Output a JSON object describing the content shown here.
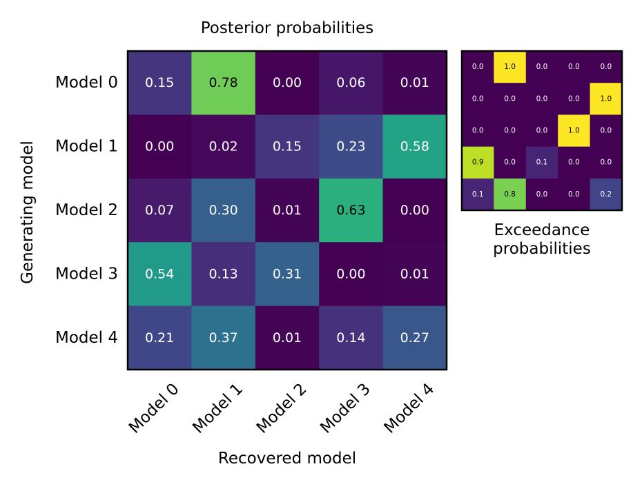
{
  "chart_data": [
    {
      "type": "heatmap",
      "title": "Posterior probabilities",
      "xlabel": "Recovered model",
      "ylabel": "Generating model",
      "x_categories": [
        "Model 0",
        "Model 1",
        "Model 2",
        "Model 3",
        "Model 4"
      ],
      "y_categories": [
        "Model 0",
        "Model 1",
        "Model 2",
        "Model 3",
        "Model 4"
      ],
      "values": [
        [
          0.15,
          0.78,
          0.0,
          0.06,
          0.01
        ],
        [
          0.0,
          0.02,
          0.15,
          0.23,
          0.58
        ],
        [
          0.07,
          0.3,
          0.01,
          0.63,
          0.0
        ],
        [
          0.54,
          0.13,
          0.31,
          0.0,
          0.01
        ],
        [
          0.21,
          0.37,
          0.01,
          0.14,
          0.27
        ]
      ],
      "value_format_decimals": 2,
      "colormap": "viridis",
      "vmin": 0,
      "vmax": 1,
      "light_text_color": "#ffffff",
      "dark_text_color": "#000000"
    },
    {
      "type": "heatmap",
      "xlabel_lines": [
        "Exceedance",
        "probabilities"
      ],
      "values": [
        [
          0.0,
          1.0,
          0.0,
          0.0,
          0.0
        ],
        [
          0.0,
          0.0,
          0.0,
          0.0,
          1.0
        ],
        [
          0.0,
          0.0,
          0.0,
          1.0,
          0.0
        ],
        [
          0.9,
          0.0,
          0.1,
          0.0,
          0.0
        ],
        [
          0.1,
          0.8,
          0.0,
          0.0,
          0.2
        ]
      ],
      "value_format_decimals": 1,
      "colormap": "viridis",
      "vmin": 0,
      "vmax": 1,
      "light_text_color": "#ffffff",
      "dark_text_color": "#000000"
    }
  ]
}
